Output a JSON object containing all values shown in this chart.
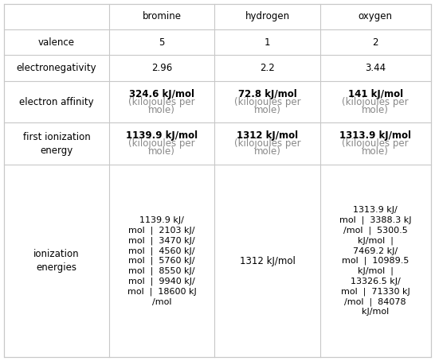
{
  "columns": [
    "",
    "bromine",
    "hydrogen",
    "oxygen"
  ],
  "rows": [
    {
      "label": "valence",
      "cells": [
        "5",
        "1",
        "2"
      ]
    },
    {
      "label": "electronegativity",
      "cells": [
        "2.96",
        "2.2",
        "3.44"
      ]
    },
    {
      "label": "electron affinity",
      "cells": [
        [
          {
            "text": "324.6 kJ/mol",
            "bold": true
          },
          {
            "text": "(kilojoules per\nmole)",
            "bold": false,
            "color": "#888888"
          }
        ],
        [
          {
            "text": "72.8 kJ/mol",
            "bold": true
          },
          {
            "text": "(kilojoules per\nmole)",
            "bold": false,
            "color": "#888888"
          }
        ],
        [
          {
            "text": "141 kJ/mol",
            "bold": true
          },
          {
            "text": "(kilojoules per\nmole)",
            "bold": false,
            "color": "#888888"
          }
        ]
      ]
    },
    {
      "label": "first ionization\nenergy",
      "cells": [
        [
          {
            "text": "1139.9 kJ/mol",
            "bold": true
          },
          {
            "text": "(kilojoules per\nmole)",
            "bold": false,
            "color": "#888888"
          }
        ],
        [
          {
            "text": "1312 kJ/mol",
            "bold": true
          },
          {
            "text": "(kilojoules per\nmole)",
            "bold": false,
            "color": "#888888"
          }
        ],
        [
          {
            "text": "1313.9 kJ/mol",
            "bold": true
          },
          {
            "text": "(kilojoules per\nmole)",
            "bold": false,
            "color": "#888888"
          }
        ]
      ]
    },
    {
      "label": "ionization\nenergies",
      "cells": [
        "1139.9 kJ/\nmol  |  2103 kJ/\nmol  |  3470 kJ/\nmol  |  4560 kJ/\nmol  |  5760 kJ/\nmol  |  8550 kJ/\nmol  |  9940 kJ/\nmol  |  18600 kJ\n/mol",
        "1312 kJ/mol",
        "1313.9 kJ/\nmol  |  3388.3 kJ\n/mol  |  5300.5\nkJ/mol  |\n7469.2 kJ/\nmol  |  10989.5\nkJ/mol  |\n13326.5 kJ/\nmol  |  71330 kJ\n/mol  |  84078\nkJ/mol"
      ]
    }
  ],
  "border_color": "#c8c8c8",
  "text_color": "#000000",
  "subtext_color": "#888888",
  "bg_color": "#ffffff",
  "font_size": 8.5
}
